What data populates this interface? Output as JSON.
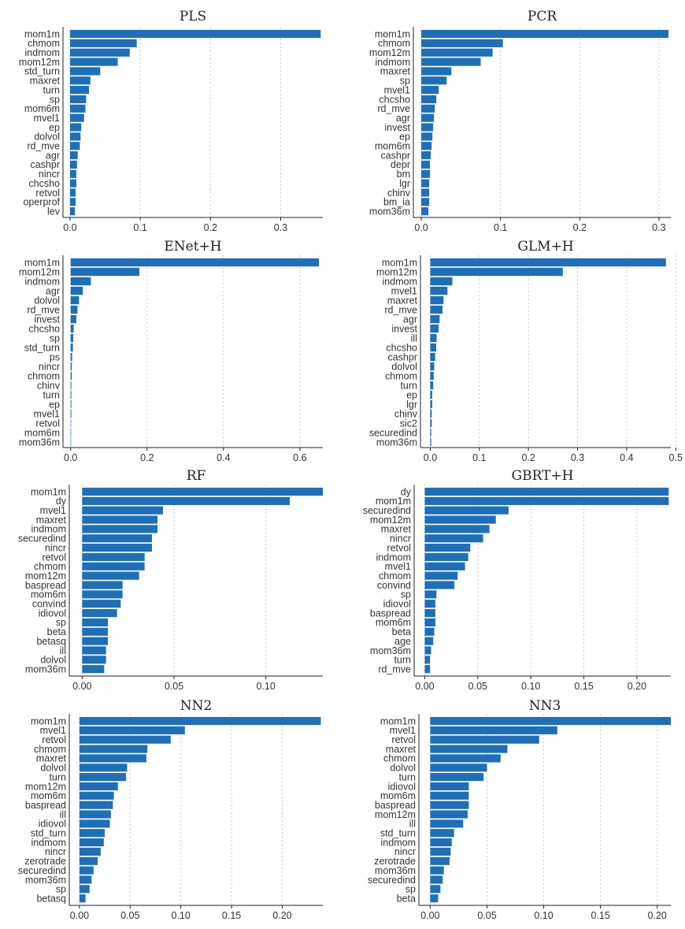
{
  "figure": {
    "bar_color": "#1f6fb8"
  },
  "chart_data": [
    {
      "type": "bar",
      "orientation": "horizontal",
      "title": "PLS",
      "categories": [
        "mom1m",
        "chmom",
        "indmom",
        "mom12m",
        "std_turn",
        "maxret",
        "turn",
        "sp",
        "mom6m",
        "mvel1",
        "ep",
        "dolvol",
        "rd_mve",
        "agr",
        "cashpr",
        "nincr",
        "chcsho",
        "retvol",
        "operprof",
        "lev"
      ],
      "values": [
        0.357,
        0.095,
        0.085,
        0.068,
        0.043,
        0.029,
        0.027,
        0.023,
        0.022,
        0.02,
        0.016,
        0.015,
        0.014,
        0.011,
        0.01,
        0.009,
        0.009,
        0.008,
        0.008,
        0.007
      ],
      "xlim": [
        -0.01,
        0.36
      ],
      "xticks": [
        0.0,
        0.1,
        0.2,
        0.3
      ],
      "xtick_labels": [
        "0.0",
        "0.1",
        "0.2",
        "0.3"
      ]
    },
    {
      "type": "bar",
      "orientation": "horizontal",
      "title": "PCR",
      "categories": [
        "mom1m",
        "chmom",
        "mom12m",
        "indmom",
        "maxret",
        "sp",
        "mvel1",
        "chcsho",
        "rd_mve",
        "agr",
        "invest",
        "ep",
        "mom6m",
        "cashpr",
        "depr",
        "bm",
        "lgr",
        "chinv",
        "bm_ia",
        "mom36m"
      ],
      "values": [
        0.312,
        0.103,
        0.09,
        0.075,
        0.038,
        0.032,
        0.022,
        0.019,
        0.017,
        0.016,
        0.015,
        0.014,
        0.013,
        0.012,
        0.011,
        0.011,
        0.01,
        0.01,
        0.01,
        0.009
      ],
      "xlim": [
        -0.01,
        0.315
      ],
      "xticks": [
        0.0,
        0.1,
        0.2,
        0.3
      ],
      "xtick_labels": [
        "0.0",
        "0.1",
        "0.2",
        "0.3"
      ]
    },
    {
      "type": "bar",
      "orientation": "horizontal",
      "title": "ENet+H",
      "categories": [
        "mom1m",
        "mom12m",
        "indmom",
        "agr",
        "dolvol",
        "rd_mve",
        "invest",
        "chcsho",
        "sp",
        "std_turn",
        "ps",
        "nincr",
        "chmom",
        "chinv",
        "turn",
        "ep",
        "mvel1",
        "retvol",
        "mom6m",
        "mom36m"
      ],
      "values": [
        0.65,
        0.18,
        0.053,
        0.032,
        0.022,
        0.018,
        0.015,
        0.008,
        0.007,
        0.006,
        0.004,
        0.003,
        0.003,
        0.002,
        0.002,
        0.002,
        0.002,
        0.001,
        0.001,
        0.001
      ],
      "xlim": [
        -0.02,
        0.66
      ],
      "xticks": [
        0.0,
        0.2,
        0.4,
        0.6
      ],
      "xtick_labels": [
        "0.0",
        "0.2",
        "0.4",
        "0.6"
      ]
    },
    {
      "type": "bar",
      "orientation": "horizontal",
      "title": "GLM+H",
      "categories": [
        "mom1m",
        "mom12m",
        "indmom",
        "mvel1",
        "maxret",
        "rd_mve",
        "agr",
        "invest",
        "ill",
        "chcsho",
        "cashpr",
        "dolvol",
        "chmom",
        "turn",
        "ep",
        "lgr",
        "chinv",
        "sic2",
        "securedind",
        "mom36m"
      ],
      "values": [
        0.48,
        0.27,
        0.045,
        0.035,
        0.027,
        0.025,
        0.019,
        0.017,
        0.013,
        0.012,
        0.01,
        0.008,
        0.007,
        0.006,
        0.004,
        0.004,
        0.003,
        0.003,
        0.002,
        0.002
      ],
      "xlim": [
        -0.02,
        0.49
      ],
      "xticks": [
        0.0,
        0.1,
        0.2,
        0.3,
        0.4,
        0.5
      ],
      "xtick_labels": [
        "0.0",
        "0.1",
        "0.2",
        "0.3",
        "0.4",
        "0.5"
      ]
    },
    {
      "type": "bar",
      "orientation": "horizontal",
      "title": "RF",
      "categories": [
        "mom1m",
        "dy",
        "mvel1",
        "maxret",
        "indmom",
        "securedind",
        "nincr",
        "retvol",
        "chmom",
        "mom12m",
        "baspread",
        "mom6m",
        "convind",
        "idiovol",
        "sp",
        "beta",
        "betasq",
        "ill",
        "dolvol",
        "mom36m"
      ],
      "values": [
        0.131,
        0.113,
        0.044,
        0.041,
        0.041,
        0.038,
        0.038,
        0.034,
        0.034,
        0.031,
        0.022,
        0.022,
        0.021,
        0.019,
        0.014,
        0.014,
        0.014,
        0.013,
        0.013,
        0.012
      ],
      "xlim": [
        -0.007,
        0.131
      ],
      "xticks": [
        0.0,
        0.05,
        0.1
      ],
      "xtick_labels": [
        "0.00",
        "0.05",
        "0.10"
      ]
    },
    {
      "type": "bar",
      "orientation": "horizontal",
      "title": "GBRT+H",
      "categories": [
        "dy",
        "mom1m",
        "securedind",
        "mom12m",
        "maxret",
        "nincr",
        "retvol",
        "indmom",
        "mvel1",
        "chmom",
        "convind",
        "sp",
        "idiovol",
        "baspread",
        "mom6m",
        "beta",
        "age",
        "mom36m",
        "turn",
        "rd_mve"
      ],
      "values": [
        0.23,
        0.23,
        0.079,
        0.067,
        0.061,
        0.055,
        0.043,
        0.041,
        0.038,
        0.031,
        0.028,
        0.011,
        0.01,
        0.01,
        0.01,
        0.009,
        0.008,
        0.006,
        0.005,
        0.005
      ],
      "xlim": [
        -0.01,
        0.232
      ],
      "xticks": [
        0.0,
        0.05,
        0.1,
        0.15,
        0.2
      ],
      "xtick_labels": [
        "0.00",
        "0.05",
        "0.10",
        "0.15",
        "0.20"
      ]
    },
    {
      "type": "bar",
      "orientation": "horizontal",
      "title": "NN2",
      "categories": [
        "mom1m",
        "mvel1",
        "retvol",
        "chmom",
        "maxret",
        "dolvol",
        "turn",
        "mom12m",
        "mom6m",
        "baspread",
        "ill",
        "idiovol",
        "std_turn",
        "indmom",
        "nincr",
        "zerotrade",
        "securedind",
        "mom36m",
        "sp",
        "betasq"
      ],
      "values": [
        0.238,
        0.104,
        0.09,
        0.067,
        0.066,
        0.047,
        0.046,
        0.038,
        0.034,
        0.033,
        0.031,
        0.03,
        0.025,
        0.024,
        0.021,
        0.018,
        0.014,
        0.012,
        0.01,
        0.006
      ],
      "xlim": [
        -0.01,
        0.24
      ],
      "xticks": [
        0.0,
        0.05,
        0.1,
        0.15,
        0.2
      ],
      "xtick_labels": [
        "0.00",
        "0.05",
        "0.10",
        "0.15",
        "0.20"
      ]
    },
    {
      "type": "bar",
      "orientation": "horizontal",
      "title": "NN3",
      "categories": [
        "mom1m",
        "mvel1",
        "retvol",
        "maxret",
        "chmom",
        "dolvol",
        "turn",
        "idiovol",
        "mom6m",
        "baspread",
        "mom12m",
        "ill",
        "std_turn",
        "indmom",
        "nincr",
        "zerotrade",
        "mom36m",
        "securedind",
        "sp",
        "beta"
      ],
      "values": [
        0.212,
        0.112,
        0.096,
        0.068,
        0.062,
        0.05,
        0.047,
        0.034,
        0.034,
        0.034,
        0.033,
        0.029,
        0.021,
        0.019,
        0.018,
        0.017,
        0.012,
        0.011,
        0.009,
        0.007
      ],
      "xlim": [
        -0.01,
        0.212
      ],
      "xticks": [
        0.0,
        0.05,
        0.1,
        0.15,
        0.2
      ],
      "xtick_labels": [
        "0.00",
        "0.05",
        "0.10",
        "0.15",
        "0.20"
      ]
    }
  ]
}
